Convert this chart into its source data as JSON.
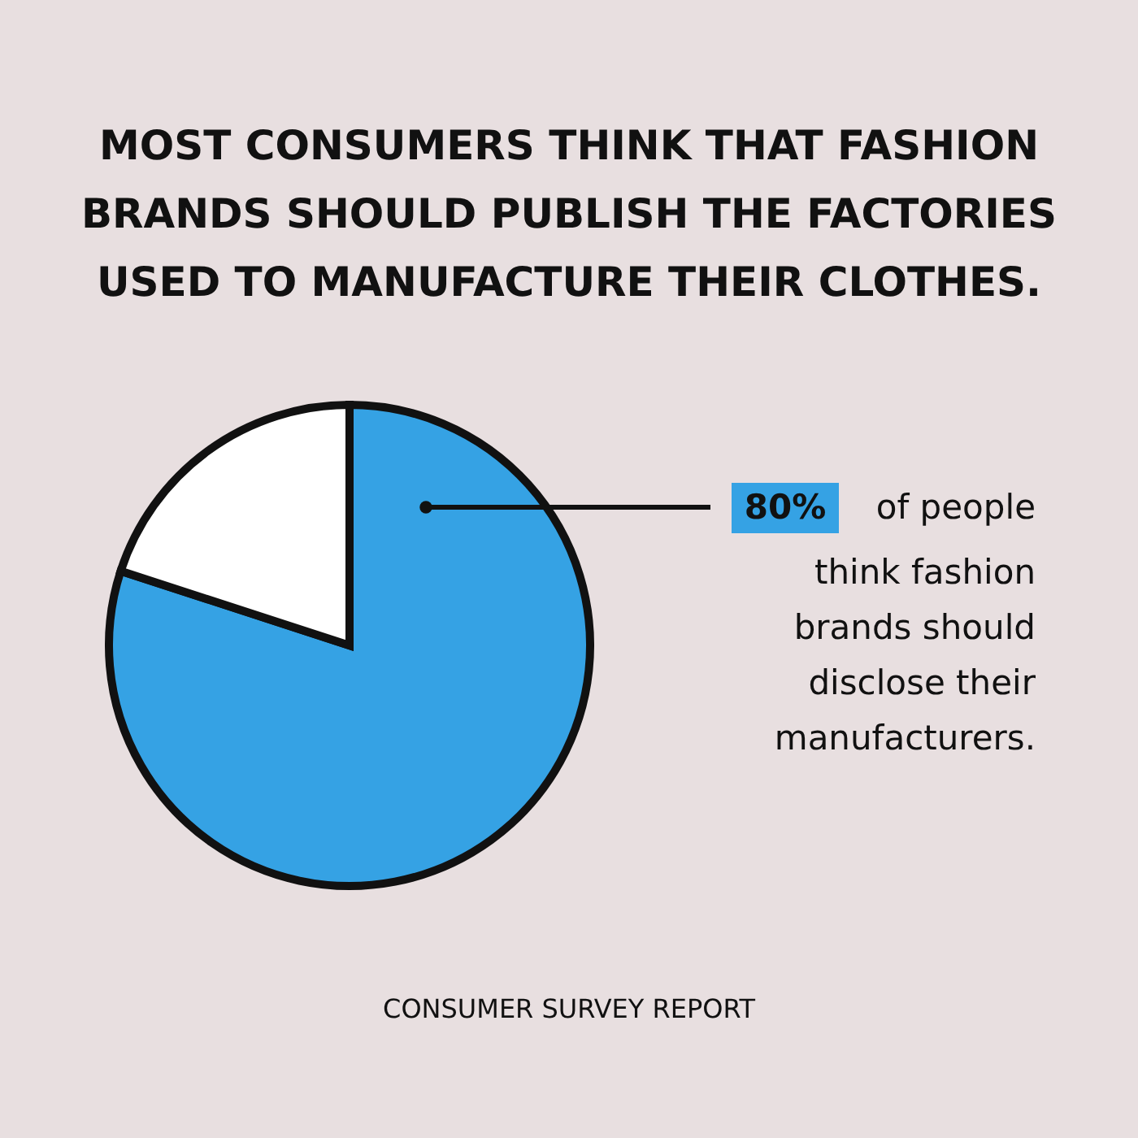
{
  "chart_data": {
    "type": "pie",
    "title": "MOST CONSUMERS THINK THAT FASHION BRANDS SHOULD PUBLISH THE FACTORIES USED TO MANUFACTURE THEIR CLOTHES.",
    "categories": [
      null,
      null
    ],
    "values": [
      80,
      20
    ],
    "colors": [
      "#35a2e4",
      "#ffffff"
    ],
    "value_labels": [
      "80%",
      null
    ],
    "annotations": [
      "of people think fashion brands should disclose their manufacturers.",
      "CONSUMER SURVEY REPORT"
    ]
  }
}
